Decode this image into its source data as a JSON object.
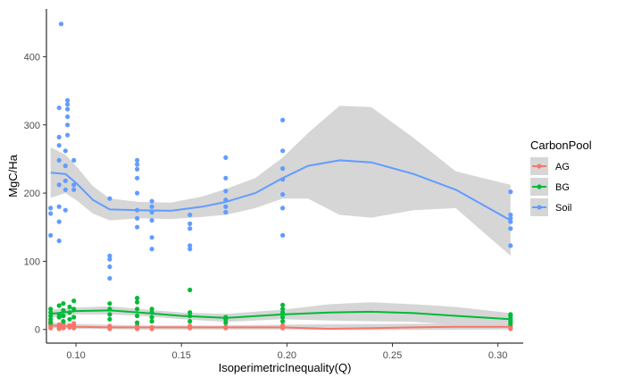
{
  "chart_data": {
    "type": "scatter",
    "title": "",
    "xlabel": "IsoperimetricInequality(Q)",
    "ylabel": "MgC/Ha",
    "xlim": [
      0.086,
      0.312
    ],
    "ylim": [
      -20,
      470
    ],
    "xticks": [
      0.1,
      0.15,
      0.2,
      0.25,
      0.3
    ],
    "xtick_labels": [
      "0.10",
      "0.15",
      "0.20",
      "0.25",
      "0.30"
    ],
    "yticks": [
      0,
      100,
      200,
      300,
      400
    ],
    "ytick_labels": [
      "0",
      "100",
      "200",
      "300",
      "400"
    ],
    "grid": false,
    "legend": {
      "title": "CarbonPool",
      "position": "right"
    },
    "series": [
      {
        "name": "AG",
        "color": "#f8766d",
        "points": [
          [
            0.088,
            2
          ],
          [
            0.088,
            5
          ],
          [
            0.088,
            8
          ],
          [
            0.088,
            12
          ],
          [
            0.092,
            1
          ],
          [
            0.092,
            4
          ],
          [
            0.092,
            7
          ],
          [
            0.094,
            2
          ],
          [
            0.094,
            6
          ],
          [
            0.094,
            10
          ],
          [
            0.097,
            3
          ],
          [
            0.097,
            6
          ],
          [
            0.099,
            2
          ],
          [
            0.099,
            5
          ],
          [
            0.099,
            9
          ],
          [
            0.116,
            1
          ],
          [
            0.116,
            3
          ],
          [
            0.116,
            5
          ],
          [
            0.129,
            1
          ],
          [
            0.129,
            3
          ],
          [
            0.129,
            6
          ],
          [
            0.136,
            1
          ],
          [
            0.136,
            3
          ],
          [
            0.154,
            2
          ],
          [
            0.154,
            5
          ],
          [
            0.171,
            2
          ],
          [
            0.171,
            4
          ],
          [
            0.198,
            2
          ],
          [
            0.198,
            4
          ],
          [
            0.198,
            6
          ],
          [
            0.306,
            1
          ],
          [
            0.306,
            3
          ],
          [
            0.306,
            5
          ]
        ],
        "smooth": [
          [
            0.088,
            6
          ],
          [
            0.1,
            4
          ],
          [
            0.116,
            3
          ],
          [
            0.13,
            3
          ],
          [
            0.15,
            3
          ],
          [
            0.171,
            3
          ],
          [
            0.198,
            3
          ],
          [
            0.22,
            1
          ],
          [
            0.24,
            2
          ],
          [
            0.26,
            3
          ],
          [
            0.28,
            4
          ],
          [
            0.306,
            4
          ]
        ],
        "band": [
          [
            0.088,
            2,
            10
          ],
          [
            0.1,
            1,
            8
          ],
          [
            0.13,
            0,
            6
          ],
          [
            0.171,
            0,
            6
          ],
          [
            0.198,
            0,
            7
          ],
          [
            0.24,
            -1,
            8
          ],
          [
            0.306,
            0,
            9
          ]
        ]
      },
      {
        "name": "BG",
        "color": "#00ba38",
        "points": [
          [
            0.088,
            10
          ],
          [
            0.088,
            15
          ],
          [
            0.088,
            20
          ],
          [
            0.088,
            25
          ],
          [
            0.088,
            30
          ],
          [
            0.092,
            18
          ],
          [
            0.092,
            22
          ],
          [
            0.092,
            35
          ],
          [
            0.094,
            12
          ],
          [
            0.094,
            20
          ],
          [
            0.094,
            28
          ],
          [
            0.094,
            38
          ],
          [
            0.097,
            15
          ],
          [
            0.097,
            25
          ],
          [
            0.097,
            33
          ],
          [
            0.099,
            18
          ],
          [
            0.099,
            30
          ],
          [
            0.099,
            42
          ],
          [
            0.116,
            15
          ],
          [
            0.116,
            22
          ],
          [
            0.116,
            30
          ],
          [
            0.116,
            38
          ],
          [
            0.129,
            10
          ],
          [
            0.129,
            20
          ],
          [
            0.129,
            30
          ],
          [
            0.129,
            40
          ],
          [
            0.129,
            46
          ],
          [
            0.136,
            12
          ],
          [
            0.136,
            18
          ],
          [
            0.136,
            25
          ],
          [
            0.136,
            30
          ],
          [
            0.154,
            12
          ],
          [
            0.154,
            20
          ],
          [
            0.154,
            25
          ],
          [
            0.154,
            58
          ],
          [
            0.171,
            10
          ],
          [
            0.171,
            15
          ],
          [
            0.171,
            18
          ],
          [
            0.198,
            12
          ],
          [
            0.198,
            18
          ],
          [
            0.198,
            25
          ],
          [
            0.198,
            30
          ],
          [
            0.198,
            36
          ],
          [
            0.306,
            8
          ],
          [
            0.306,
            12
          ],
          [
            0.306,
            16
          ],
          [
            0.306,
            20
          ],
          [
            0.306,
            22
          ]
        ],
        "smooth": [
          [
            0.088,
            23
          ],
          [
            0.1,
            27
          ],
          [
            0.116,
            28
          ],
          [
            0.13,
            25
          ],
          [
            0.15,
            20
          ],
          [
            0.171,
            17
          ],
          [
            0.198,
            22
          ],
          [
            0.22,
            25
          ],
          [
            0.24,
            26
          ],
          [
            0.26,
            24
          ],
          [
            0.28,
            20
          ],
          [
            0.306,
            15
          ]
        ],
        "band": [
          [
            0.088,
            17,
            29
          ],
          [
            0.1,
            22,
            32
          ],
          [
            0.116,
            22,
            34
          ],
          [
            0.13,
            20,
            30
          ],
          [
            0.15,
            15,
            25
          ],
          [
            0.171,
            11,
            23
          ],
          [
            0.198,
            15,
            29
          ],
          [
            0.22,
            13,
            37
          ],
          [
            0.24,
            12,
            40
          ],
          [
            0.26,
            11,
            37
          ],
          [
            0.28,
            7,
            33
          ],
          [
            0.306,
            6,
            24
          ]
        ]
      },
      {
        "name": "Soil",
        "color": "#619cff",
        "points": [
          [
            0.088,
            138
          ],
          [
            0.088,
            170
          ],
          [
            0.088,
            178
          ],
          [
            0.092,
            130
          ],
          [
            0.092,
            158
          ],
          [
            0.092,
            180
          ],
          [
            0.092,
            212
          ],
          [
            0.092,
            248
          ],
          [
            0.092,
            270
          ],
          [
            0.092,
            282
          ],
          [
            0.092,
            325
          ],
          [
            0.093,
            448
          ],
          [
            0.095,
            175
          ],
          [
            0.095,
            205
          ],
          [
            0.095,
            218
          ],
          [
            0.095,
            240
          ],
          [
            0.095,
            262
          ],
          [
            0.096,
            285
          ],
          [
            0.096,
            300
          ],
          [
            0.096,
            312
          ],
          [
            0.096,
            323
          ],
          [
            0.096,
            330
          ],
          [
            0.096,
            336
          ],
          [
            0.099,
            205
          ],
          [
            0.099,
            212
          ],
          [
            0.099,
            248
          ],
          [
            0.116,
            75
          ],
          [
            0.116,
            92
          ],
          [
            0.116,
            103
          ],
          [
            0.116,
            108
          ],
          [
            0.116,
            192
          ],
          [
            0.129,
            150
          ],
          [
            0.129,
            163
          ],
          [
            0.129,
            175
          ],
          [
            0.129,
            200
          ],
          [
            0.129,
            222
          ],
          [
            0.129,
            235
          ],
          [
            0.129,
            242
          ],
          [
            0.129,
            248
          ],
          [
            0.136,
            118
          ],
          [
            0.136,
            135
          ],
          [
            0.136,
            160
          ],
          [
            0.136,
            172
          ],
          [
            0.136,
            180
          ],
          [
            0.136,
            188
          ],
          [
            0.154,
            118
          ],
          [
            0.154,
            123
          ],
          [
            0.154,
            148
          ],
          [
            0.154,
            155
          ],
          [
            0.154,
            168
          ],
          [
            0.171,
            172
          ],
          [
            0.171,
            180
          ],
          [
            0.171,
            190
          ],
          [
            0.171,
            203
          ],
          [
            0.171,
            222
          ],
          [
            0.171,
            252
          ],
          [
            0.198,
            138
          ],
          [
            0.198,
            178
          ],
          [
            0.198,
            198
          ],
          [
            0.198,
            220
          ],
          [
            0.198,
            236
          ],
          [
            0.198,
            262
          ],
          [
            0.198,
            307
          ],
          [
            0.306,
            123
          ],
          [
            0.306,
            148
          ],
          [
            0.306,
            158
          ],
          [
            0.306,
            163
          ],
          [
            0.306,
            168
          ],
          [
            0.306,
            202
          ]
        ],
        "smooth": [
          [
            0.088,
            230
          ],
          [
            0.095,
            228
          ],
          [
            0.1,
            215
          ],
          [
            0.108,
            190
          ],
          [
            0.116,
            176
          ],
          [
            0.13,
            175
          ],
          [
            0.145,
            174
          ],
          [
            0.16,
            180
          ],
          [
            0.171,
            187
          ],
          [
            0.185,
            200
          ],
          [
            0.198,
            222
          ],
          [
            0.21,
            240
          ],
          [
            0.225,
            248
          ],
          [
            0.24,
            245
          ],
          [
            0.26,
            228
          ],
          [
            0.28,
            205
          ],
          [
            0.306,
            160
          ]
        ],
        "band": [
          [
            0.088,
            193,
            267
          ],
          [
            0.095,
            200,
            256
          ],
          [
            0.1,
            190,
            240
          ],
          [
            0.108,
            170,
            210
          ],
          [
            0.116,
            160,
            192
          ],
          [
            0.13,
            163,
            187
          ],
          [
            0.145,
            162,
            186
          ],
          [
            0.16,
            165,
            195
          ],
          [
            0.171,
            168,
            206
          ],
          [
            0.185,
            178,
            222
          ],
          [
            0.198,
            192,
            252
          ],
          [
            0.21,
            192,
            288
          ],
          [
            0.225,
            168,
            328
          ],
          [
            0.24,
            164,
            326
          ],
          [
            0.26,
            175,
            281
          ],
          [
            0.28,
            178,
            232
          ],
          [
            0.306,
            108,
            212
          ]
        ]
      }
    ]
  }
}
